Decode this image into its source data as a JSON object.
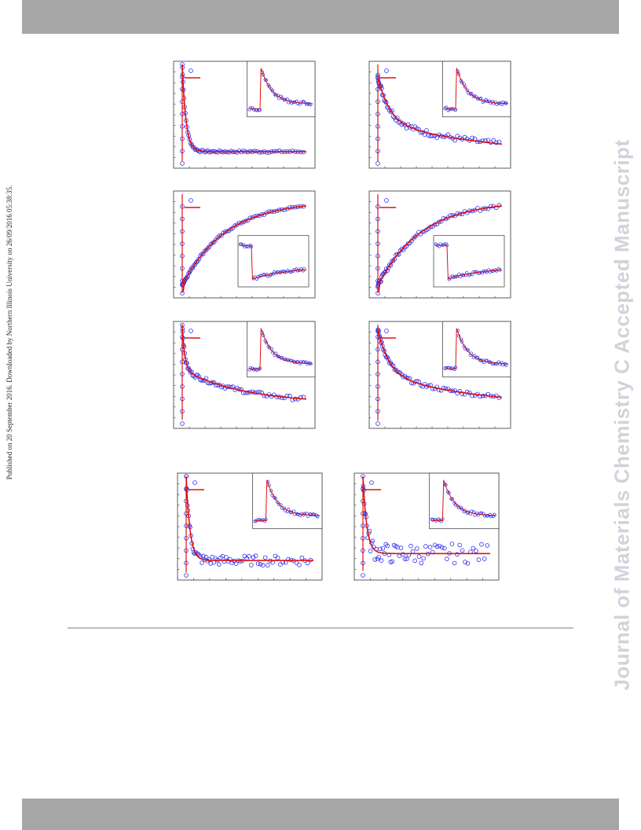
{
  "header": {
    "color": "#a6a6a6"
  },
  "footer": {
    "color": "#a6a6a6"
  },
  "side_note": "Published on 20 September 2016. Downloaded by Northern Illinois University on 26/09/2016 05:38:35.",
  "watermark": "Journal of Materials Chemistry C Accepted Manuscript",
  "colors": {
    "data_marker": "#2a2aee",
    "fit_line": "#e01010",
    "frame": "#333333"
  },
  "chart_data": [
    {
      "type": "scatter",
      "panel": 1,
      "shape": "fast-decay",
      "noise": 0.01,
      "baseline": 0.12,
      "inset": "top-right"
    },
    {
      "type": "scatter",
      "panel": 2,
      "shape": "slow-decay",
      "noise": 0.03,
      "baseline": 0.08,
      "inset": "top-right"
    },
    {
      "type": "scatter",
      "panel": 3,
      "shape": "growth",
      "noise": 0.01,
      "inset": "bottom-right"
    },
    {
      "type": "scatter",
      "panel": 4,
      "shape": "growth",
      "noise": 0.02,
      "inset": "bottom-right"
    },
    {
      "type": "scatter",
      "panel": 5,
      "shape": "medium-decay",
      "noise": 0.02,
      "baseline": 0.2,
      "inset": "top-right"
    },
    {
      "type": "scatter",
      "panel": 6,
      "shape": "slow-decay",
      "noise": 0.02,
      "baseline": 0.15,
      "inset": "top-right"
    },
    {
      "type": "scatter",
      "panel": 7,
      "shape": "fast-decay",
      "noise": 0.05,
      "baseline": 0.15,
      "inset": "top-right"
    },
    {
      "type": "scatter",
      "panel": 8,
      "shape": "fast-decay",
      "noise": 0.1,
      "baseline": 0.22,
      "inset": "top-right"
    }
  ]
}
